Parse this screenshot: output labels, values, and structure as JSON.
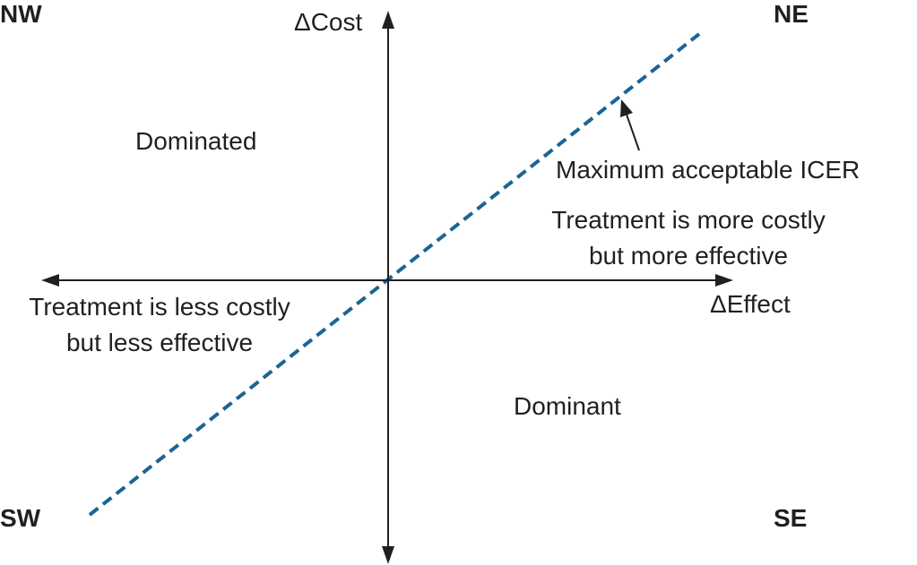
{
  "quadrants": {
    "nw": "NW",
    "ne": "NE",
    "sw": "SW",
    "se": "SE"
  },
  "axes": {
    "y_label": "ΔCost",
    "x_label": "ΔEffect"
  },
  "regions": {
    "dominated": "Dominated",
    "dominant": "Dominant",
    "ne_line1": "Treatment is more costly",
    "ne_line2": "but more effective",
    "sw_line1": "Treatment is less costly",
    "sw_line2": "but less effective"
  },
  "threshold": {
    "label": "Maximum acceptable ICER",
    "color": "#1a6496"
  }
}
